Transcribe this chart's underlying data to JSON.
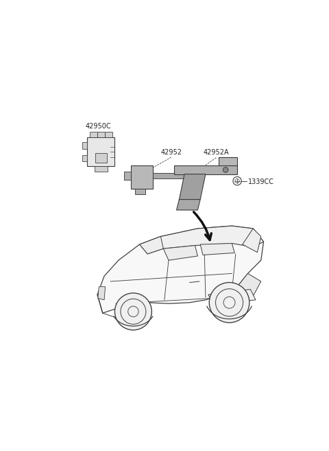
{
  "bg_color": "#ffffff",
  "fig_width": 4.8,
  "fig_height": 6.57,
  "dpi": 100,
  "line_color": "#3a3a3a",
  "text_color": "#222222",
  "part_fill": "#c8c8c8",
  "part_dark": "#888888",
  "label_42950C": "42950C",
  "label_42952": "42952",
  "label_42952A": "42952A",
  "label_1339CC": "1339CC",
  "font_size": 7.0
}
